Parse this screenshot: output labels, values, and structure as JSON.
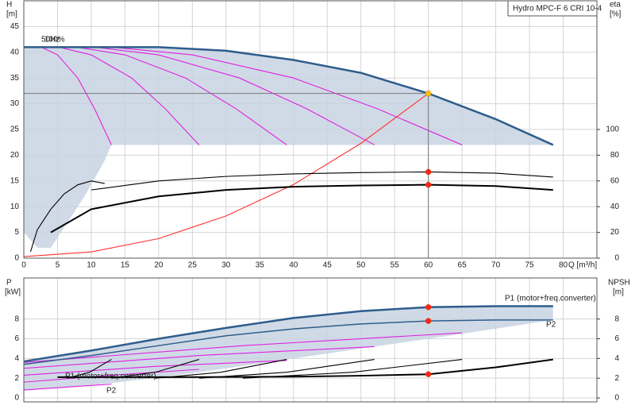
{
  "chart_data": [
    {
      "type": "line",
      "title": "Hydro MPC-F 6 CRI 10-4",
      "y_label": "H",
      "y_unit": "[m]",
      "y2_label": "eta",
      "y2_unit": "[%]",
      "x_label": "Q [m³/h]",
      "annotations": [
        "50Hz",
        "100%"
      ],
      "xlim": [
        0,
        85
      ],
      "xticks": [
        0,
        5,
        10,
        15,
        20,
        25,
        30,
        35,
        40,
        45,
        50,
        55,
        60,
        65,
        70,
        75,
        80
      ],
      "ylim": [
        0,
        50
      ],
      "yticks": [
        0,
        5,
        10,
        15,
        20,
        25,
        30,
        35,
        40,
        45
      ],
      "y2lim": [
        0,
        200
      ],
      "y2ticks": [
        0,
        20,
        40,
        60,
        80,
        100
      ],
      "grid": true,
      "series": [
        {
          "fill": "#c8d4e2",
          "x": [
            0,
            10,
            20,
            30,
            40,
            50,
            60,
            70,
            78.5,
            65,
            52,
            39,
            26,
            13,
            12,
            9,
            6,
            4,
            2,
            0
          ],
          "values": [
            41,
            41,
            41,
            40.3,
            38.5,
            36,
            32,
            27,
            22,
            22,
            22,
            22,
            22,
            22,
            19,
            12,
            6,
            2,
            2,
            5
          ]
        },
        {
          "color": "#e020e0",
          "x": [
            0,
            2.6,
            5,
            8,
            10.5,
            13
          ],
          "values": [
            41,
            41,
            39.5,
            35,
            29,
            22
          ]
        },
        {
          "color": "#e020e0",
          "x": [
            0,
            5.2,
            10,
            16,
            21,
            26
          ],
          "values": [
            41,
            41,
            39.5,
            35,
            29,
            22
          ]
        },
        {
          "color": "#e020e0",
          "x": [
            0,
            7.8,
            15,
            24,
            31.5,
            39
          ],
          "values": [
            41,
            41,
            39.5,
            35,
            29,
            22
          ]
        },
        {
          "color": "#e020e0",
          "x": [
            0,
            10.4,
            20,
            32,
            42,
            52
          ],
          "values": [
            41,
            41,
            39.5,
            35,
            29,
            22
          ]
        },
        {
          "color": "#e020e0",
          "x": [
            0,
            13,
            25,
            40,
            52.5,
            65
          ],
          "values": [
            41,
            41,
            39.5,
            35,
            29,
            22
          ]
        },
        {
          "color": "#2e5d8c",
          "width": 2.5,
          "x": [
            0,
            10,
            20,
            30,
            40,
            50,
            60,
            70,
            78.5
          ],
          "values": [
            41,
            41,
            41,
            40.3,
            38.5,
            36,
            32,
            27,
            22
          ]
        },
        {
          "color": "#ff3030",
          "x": [
            0,
            10,
            20,
            30,
            40,
            50,
            60
          ],
          "values": [
            0.3,
            1.2,
            3.8,
            8.2,
            14.3,
            22.3,
            32
          ]
        },
        {
          "color": "#000000",
          "axis": "y2",
          "x": [
            1,
            2,
            4,
            6,
            8,
            10,
            12
          ],
          "values": [
            5,
            22,
            38,
            50,
            57,
            60,
            58
          ]
        },
        {
          "color": "#000000",
          "axis": "y2",
          "x": [
            10,
            20,
            30,
            40,
            50,
            60,
            70,
            78.5
          ],
          "values": [
            53,
            60,
            63.5,
            65.5,
            66.5,
            67,
            66,
            63
          ]
        },
        {
          "color": "#000000",
          "width": 2,
          "axis": "y2",
          "x": [
            4,
            10,
            20,
            30,
            40,
            50,
            60,
            70,
            78.5
          ],
          "values": [
            20,
            38,
            48,
            53,
            55.5,
            56.5,
            57,
            56,
            53
          ]
        },
        {
          "marker": true,
          "guide": true,
          "color": "#f5c518",
          "x": [
            60
          ],
          "values": [
            32
          ]
        },
        {
          "marker": true,
          "color": "#ff2020",
          "axis": "y2",
          "x": [
            60
          ],
          "values": [
            67
          ]
        },
        {
          "marker": true,
          "color": "#ff2020",
          "axis": "y2",
          "x": [
            60
          ],
          "values": [
            57
          ]
        }
      ]
    },
    {
      "type": "line",
      "y_label": "P",
      "y_unit": "[kW]",
      "y2_label": "NPSH",
      "y2_unit": "[m]",
      "annotations": [
        "P1 (motor+freq.converter)",
        "P2",
        "P1 (motor+freq.converter)",
        "P2"
      ],
      "xlim": [
        0,
        85
      ],
      "xticks": [
        0,
        5,
        10,
        15,
        20,
        25,
        30,
        35,
        40,
        45,
        50,
        55,
        60,
        65,
        70,
        75,
        80
      ],
      "ylim": [
        0,
        12
      ],
      "yticks": [
        0,
        2,
        4,
        6,
        8
      ],
      "y2lim": [
        0,
        12
      ],
      "y2ticks": [
        0,
        2,
        4,
        6,
        8
      ],
      "grid": true,
      "series": [
        {
          "fill": "#c8d4e2",
          "x": [
            0,
            10,
            20,
            30,
            40,
            50,
            60,
            70,
            78.5,
            78.5,
            65,
            52,
            39,
            26,
            13,
            5,
            0
          ],
          "values": [
            3.8,
            4.8,
            6,
            7.1,
            8.1,
            8.8,
            9.2,
            9.3,
            9.3,
            7.9,
            6.5,
            5.2,
            3.9,
            2.6,
            1.5,
            1,
            0.8
          ]
        },
        {
          "color": "#e020e0",
          "x": [
            0,
            6.5,
            13
          ],
          "values": [
            0.8,
            1.1,
            1.4
          ]
        },
        {
          "color": "#e020e0",
          "x": [
            0,
            13,
            26
          ],
          "values": [
            1.6,
            2.3,
            2.9
          ]
        },
        {
          "color": "#e020e0",
          "x": [
            0,
            19.5,
            39
          ],
          "values": [
            2.3,
            3.2,
            3.8
          ]
        },
        {
          "color": "#e020e0",
          "x": [
            0,
            26,
            52
          ],
          "values": [
            3,
            4.3,
            5.2
          ]
        },
        {
          "color": "#e020e0",
          "x": [
            0,
            32.5,
            65
          ],
          "values": [
            3.6,
            5.3,
            6.6
          ]
        },
        {
          "color": "#2e5d8c",
          "width": 2.5,
          "x": [
            0,
            10,
            20,
            30,
            40,
            50,
            60,
            70,
            78.5
          ],
          "values": [
            3.7,
            4.8,
            6,
            7.1,
            8.1,
            8.8,
            9.2,
            9.3,
            9.3
          ]
        },
        {
          "color": "#2e5d8c",
          "width": 1.5,
          "x": [
            0,
            10,
            20,
            30,
            40,
            50,
            60,
            70,
            78.5
          ],
          "values": [
            3.4,
            4.3,
            5.3,
            6.3,
            7,
            7.5,
            7.8,
            7.9,
            7.9
          ]
        },
        {
          "color": "#000000",
          "axis": "y2",
          "x": [
            6.5,
            9.75,
            13
          ],
          "values": [
            2,
            2.6,
            3.9
          ]
        },
        {
          "color": "#000000",
          "axis": "y2",
          "x": [
            13,
            19.5,
            26
          ],
          "values": [
            2,
            2.6,
            3.9
          ]
        },
        {
          "color": "#000000",
          "axis": "y2",
          "x": [
            19.5,
            29.25,
            39
          ],
          "values": [
            2,
            2.6,
            3.9
          ]
        },
        {
          "color": "#000000",
          "axis": "y2",
          "x": [
            26,
            39,
            52
          ],
          "values": [
            2,
            2.6,
            3.9
          ]
        },
        {
          "color": "#000000",
          "axis": "y2",
          "x": [
            32.5,
            48.75,
            65
          ],
          "values": [
            2,
            2.6,
            3.9
          ]
        },
        {
          "color": "#000000",
          "width": 2,
          "axis": "y2",
          "x": [
            5,
            20,
            40,
            50,
            60,
            70,
            78.5
          ],
          "values": [
            2.1,
            2.1,
            2.15,
            2.25,
            2.4,
            3.1,
            3.9
          ]
        },
        {
          "marker": true,
          "color": "#ff2020",
          "x": [
            60
          ],
          "values": [
            9.2
          ]
        },
        {
          "marker": true,
          "color": "#ff2020",
          "x": [
            60
          ],
          "values": [
            7.8
          ]
        },
        {
          "marker": true,
          "color": "#ff2020",
          "axis": "y2",
          "x": [
            60
          ],
          "values": [
            2.4
          ]
        }
      ]
    }
  ]
}
